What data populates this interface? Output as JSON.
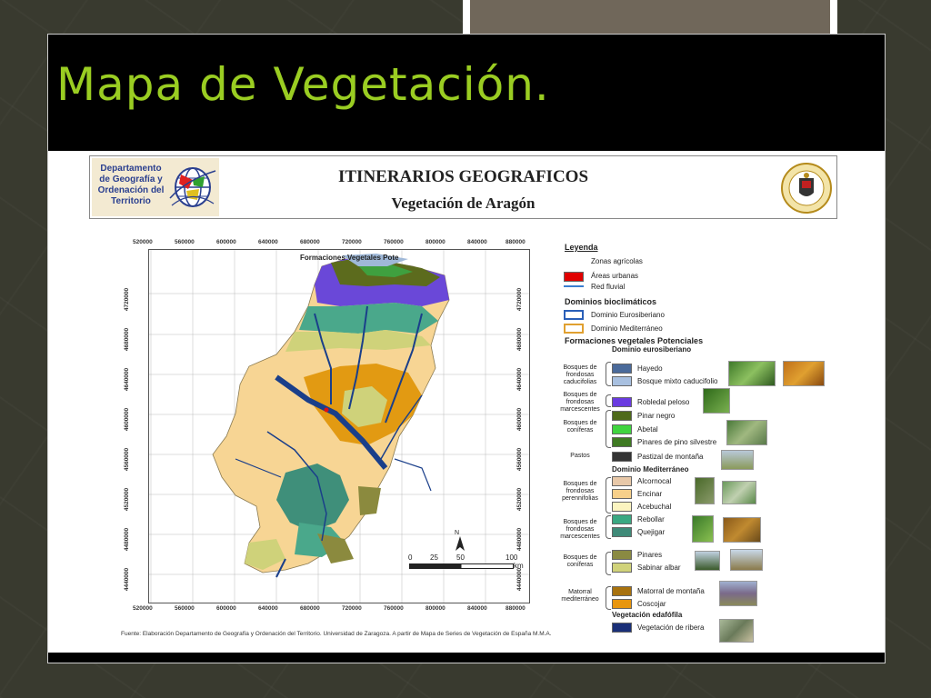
{
  "slide": {
    "title": "Mapa de Vegetación."
  },
  "header": {
    "dept_lines": [
      "Departamento",
      "de Geografía y",
      "Ordenación del",
      "Territorio"
    ],
    "title": "ITINERARIOS GEOGRAFICOS",
    "subtitle": "Vegetación de Aragón"
  },
  "map": {
    "inner_title": "Formaciones Vegetales Pote",
    "x_ticks": [
      "520000",
      "560000",
      "600000",
      "640000",
      "680000",
      "720000",
      "760000",
      "800000",
      "840000",
      "880000"
    ],
    "y_ticks": [
      "4720000",
      "4680000",
      "4640000",
      "4600000",
      "4560000",
      "4520000",
      "4480000",
      "4440000"
    ],
    "scale": [
      "0",
      "25",
      "50",
      "100"
    ],
    "scale_unit": "km",
    "north_label": "N",
    "colors": {
      "agricultural": "#f7d594",
      "encinar": "#f4c97f",
      "coscojar": "#e29a12",
      "quejigar": "#3f8f7a",
      "rebollar": "#4aa88b",
      "pinares": "#8b8a3e",
      "sabinar": "#cfd27a",
      "robledal": "#6a48d8",
      "pinar_negro": "#5c6b1d",
      "ribera": "#1a3f8a",
      "bosque_mixto": "#9fb8d8",
      "urban": "#e01010"
    }
  },
  "source": "Fuente: Elaboración Departamento de Geografía y Ordenación del Territorio. Universidad de Zaragoza. A partir de Mapa de Series de Vegetación de España M.M.A.",
  "legend": {
    "title": "Leyenda",
    "agri": "Zonas agrícolas",
    "urban": "Áreas urbanas",
    "river": "Red fluvial",
    "domains_title": "Dominios bioclimáticos",
    "euro": "Dominio Eurosiberiano",
    "medi": "Dominio Mediterráneo",
    "potential_title": "Formaciones vegetales Potenciales",
    "euro_sub": "Dominio eurosiberiano",
    "medi_sub": "Dominio Mediterráneo",
    "edaf_sub": "Vegetación edafófila",
    "groups": {
      "cad": "Bosques de frondosas caducifolias",
      "marc1": "Bosques de frondosas marcescentes",
      "con1": "Bosques de coníferas",
      "pastos": "Pastos",
      "peren": "Bosques de frondosas perennifolias",
      "marc2": "Bosques de frondosas marcescentes",
      "con2": "Bosques de coníferas",
      "matorral": "Matorral mediterráneo"
    },
    "items": {
      "hayedo": "Hayedo",
      "mixto": "Bosque mixto caducifolio",
      "robledal": "Robledal peloso",
      "pinar_negro": "Pinar negro",
      "abetal": "Abetal",
      "pino_silv": "Pinares de pino silvestre",
      "pastizal": "Pastizal de montaña",
      "alcornocal": "Alcornocal",
      "encinar": "Encinar",
      "acebuchal": "Acebuchal",
      "rebollar": "Rebollar",
      "quejigar": "Quejigar",
      "pinares": "Pinares",
      "sabinar": "Sabinar albar",
      "matorral_m": "Matorral de montaña",
      "coscojar": "Coscojar",
      "ribera": "Vegetación de ribera"
    },
    "swatch_colors": {
      "hayedo": "#4a6a9a",
      "mixto": "#a8c0e0",
      "robledal": "#6a3be0",
      "pinar_negro": "#4e6a1a",
      "abetal": "#3fd43f",
      "pino_silv": "#3e7a22",
      "pastizal": "#333333",
      "alcornocal": "#e8c8a8",
      "encinar": "#f7d08a",
      "acebuchal": "#fbf4c0",
      "rebollar": "#3aa882",
      "quejigar": "#3f8a78",
      "pinares": "#8a8a42",
      "sabinar": "#d0d27a",
      "matorral_m": "#a8720e",
      "coscojar": "#e8960e",
      "ribera": "#1a2f78",
      "urban": "#e00000",
      "river": "#3a7fd0",
      "euro_border": "#2a5fb8",
      "medi_border": "#e0a030"
    }
  }
}
